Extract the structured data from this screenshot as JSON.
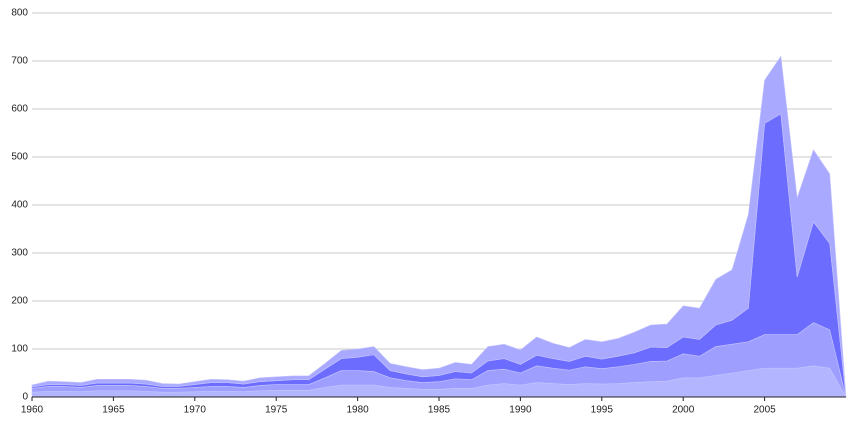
{
  "chart_data": {
    "type": "stacked-area",
    "x": [
      1960,
      1961,
      1962,
      1963,
      1964,
      1965,
      1966,
      1967,
      1968,
      1969,
      1970,
      1971,
      1972,
      1973,
      1974,
      1975,
      1976,
      1977,
      1978,
      1979,
      1980,
      1981,
      1982,
      1983,
      1984,
      1985,
      1986,
      1987,
      1988,
      1989,
      1990,
      1991,
      1992,
      1993,
      1994,
      1995,
      1996,
      1997,
      1998,
      1999,
      2000,
      2001,
      2002,
      2003,
      2004,
      2005,
      2006,
      2007,
      2008,
      2009,
      2010
    ],
    "series": [
      {
        "color": "#b3b6ff",
        "values": [
          10,
          12,
          12,
          11,
          13,
          13,
          13,
          12,
          10,
          10,
          11,
          12,
          12,
          11,
          13,
          14,
          14,
          14,
          20,
          25,
          25,
          25,
          20,
          18,
          16,
          16,
          18,
          18,
          25,
          28,
          25,
          30,
          28,
          26,
          28,
          27,
          28,
          30,
          32,
          33,
          40,
          40,
          45,
          50,
          55,
          60,
          60,
          60,
          65,
          60,
          0
        ]
      },
      {
        "color": "#9e9eff",
        "values": [
          8,
          10,
          10,
          9,
          11,
          11,
          11,
          10,
          8,
          8,
          9,
          10,
          10,
          9,
          11,
          12,
          12,
          12,
          20,
          30,
          30,
          28,
          20,
          16,
          14,
          16,
          20,
          18,
          30,
          30,
          25,
          35,
          32,
          30,
          35,
          32,
          35,
          38,
          42,
          42,
          50,
          45,
          60,
          60,
          60,
          70,
          70,
          70,
          90,
          80,
          0
        ]
      },
      {
        "color": "#6c6cff",
        "values": [
          3,
          4,
          4,
          4,
          5,
          5,
          5,
          5,
          4,
          4,
          6,
          8,
          8,
          7,
          8,
          8,
          10,
          10,
          18,
          25,
          28,
          35,
          15,
          14,
          12,
          13,
          15,
          14,
          20,
          22,
          18,
          22,
          20,
          18,
          22,
          20,
          22,
          24,
          30,
          28,
          35,
          35,
          45,
          50,
          70,
          440,
          460,
          120,
          210,
          180,
          0
        ]
      },
      {
        "color": "#a9a9ff",
        "values": [
          4,
          7,
          6,
          6,
          8,
          8,
          8,
          8,
          6,
          5,
          6,
          7,
          6,
          6,
          8,
          8,
          8,
          8,
          12,
          17,
          17,
          17,
          15,
          15,
          15,
          15,
          19,
          18,
          30,
          30,
          30,
          38,
          32,
          29,
          35,
          36,
          37,
          43,
          46,
          49,
          65,
          65,
          95,
          105,
          195,
          90,
          120,
          165,
          150,
          145,
          0
        ]
      }
    ],
    "xlim": [
      1960,
      2010
    ],
    "xticks": [
      1960,
      1965,
      1970,
      1975,
      1980,
      1985,
      1990,
      1995,
      2000,
      2005
    ],
    "ylim": [
      0,
      800
    ],
    "yticks": [
      0,
      100,
      200,
      300,
      400,
      500,
      600,
      700,
      800
    ],
    "grid": true
  }
}
